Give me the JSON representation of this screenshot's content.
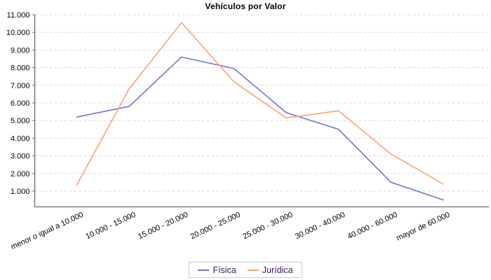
{
  "chart_data": {
    "type": "line",
    "title": "Vehículos por Valor",
    "categories": [
      "menor o igual a 10.000",
      "10.000 - 15.000",
      "15.000 - 20.000",
      "20.000 - 25.000",
      "25.000 - 30.000",
      "30.000 - 40.000",
      "40.000 - 60.000",
      "mayor de 60.000"
    ],
    "series": [
      {
        "name": "Física",
        "color": "#7173d1",
        "values": [
          5200,
          5800,
          8600,
          7950,
          5450,
          4500,
          1500,
          500
        ]
      },
      {
        "name": "Jurídica",
        "color": "#fba176",
        "values": [
          1350,
          6800,
          10550,
          7200,
          5150,
          5550,
          3100,
          1400
        ]
      }
    ],
    "ylim": [
      0,
      11000
    ],
    "y_ticks": [
      {
        "value": 1000,
        "label": "1.000"
      },
      {
        "value": 2000,
        "label": "2.000"
      },
      {
        "value": 3000,
        "label": "3.000"
      },
      {
        "value": 4000,
        "label": "4.000"
      },
      {
        "value": 5000,
        "label": "5.000"
      },
      {
        "value": 6000,
        "label": "6.000"
      },
      {
        "value": 7000,
        "label": "7.000"
      },
      {
        "value": 8000,
        "label": "8.000"
      },
      {
        "value": 9000,
        "label": "9.000"
      },
      {
        "value": 10000,
        "label": "10.000"
      },
      {
        "value": 11000,
        "label": "11.000"
      }
    ],
    "grid": "horizontal-dashed",
    "legend_position": "bottom",
    "colors": {
      "axis": "#7f7f7f",
      "gridline": "#d9d9d9",
      "tick_text": "#000000",
      "legend_text": "#3d1466",
      "background": "#ffffff"
    }
  }
}
